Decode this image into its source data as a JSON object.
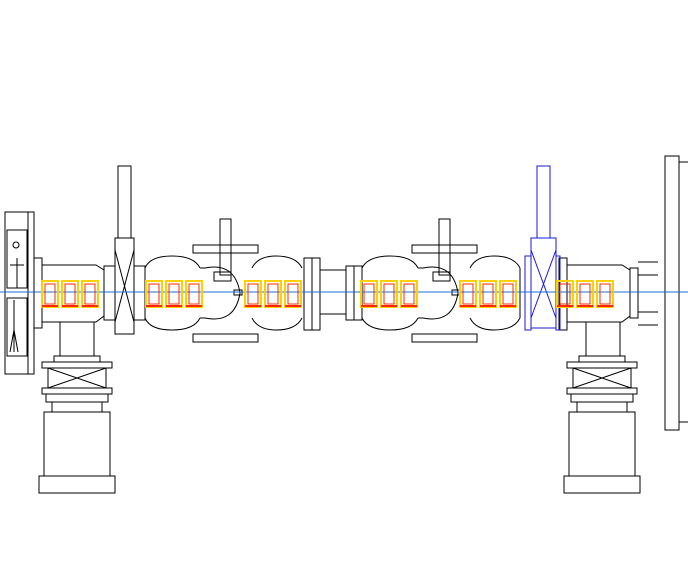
{
  "drawing": {
    "line_color": "#000000",
    "centerline_color": "#1a6fd6",
    "highlight_color": "#1a1ad6",
    "label_fill_color": "#ffd000",
    "label_stroke_color": "#ff2a00"
  },
  "label_groups": [
    {
      "name": "label-group-1",
      "count": 3
    },
    {
      "name": "label-group-2",
      "count": 3
    },
    {
      "name": "label-group-3",
      "count": 3
    },
    {
      "name": "label-group-4",
      "count": 3
    },
    {
      "name": "label-group-5",
      "count": 3
    },
    {
      "name": "label-group-6",
      "count": 3
    }
  ]
}
